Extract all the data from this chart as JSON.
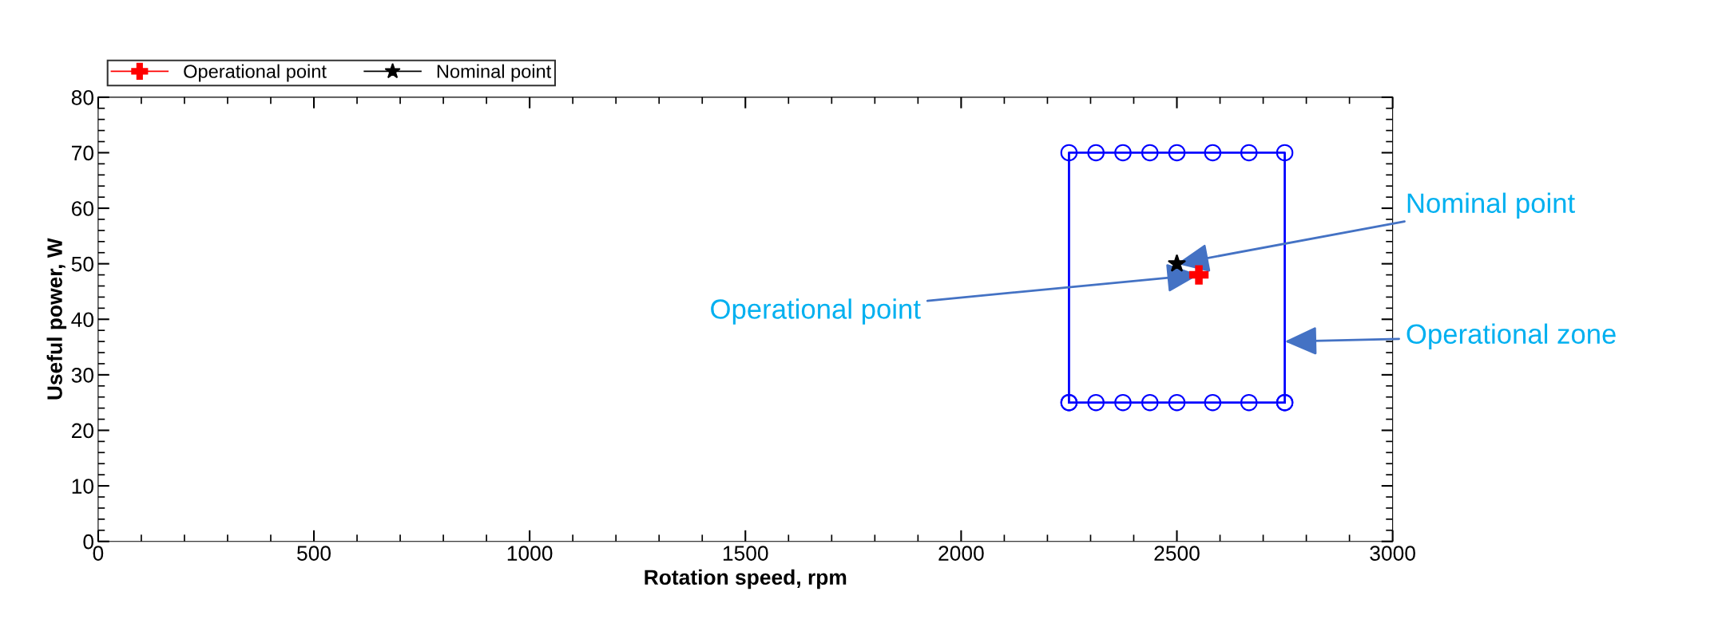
{
  "chart_data": {
    "type": "line",
    "xlabel": "Rotation speed, rpm",
    "ylabel": "Useful power, W",
    "series": [
      {
        "color": "#0000ff",
        "marker": "circle",
        "x": [
          2250,
          2250,
          2312.5,
          2375,
          2437.5,
          2500,
          2583,
          2667,
          2750,
          2750
        ],
        "values": [
          25,
          70,
          70,
          70,
          70,
          70,
          70,
          70,
          70,
          25
        ]
      },
      {
        "color": "#0000ff",
        "marker": "circle",
        "x": [
          2250,
          2312.5,
          2375,
          2437.5,
          2500,
          2583,
          2667,
          2750
        ],
        "values": [
          25,
          25,
          25,
          25,
          25,
          25,
          25,
          25
        ]
      },
      {
        "name": "Operational point",
        "color": "#ff0000",
        "marker": "cross",
        "type": "scatter",
        "x": [
          2551
        ],
        "values": [
          48
        ]
      },
      {
        "name": "Nominal point",
        "color": "#000000",
        "marker": "star",
        "type": "scatter",
        "x": [
          2500
        ],
        "values": [
          50
        ]
      }
    ],
    "annotations": [
      {
        "text": "Nominal point",
        "x": 2500,
        "y": 50
      },
      {
        "text": "Operational zone",
        "x": 2750,
        "y": 36
      },
      {
        "text": "Operational point",
        "x": 2551,
        "y": 48
      }
    ],
    "xlim": [
      0,
      3000
    ],
    "xticks": [
      0,
      500,
      1000,
      1500,
      2000,
      2500,
      3000
    ],
    "ylim": [
      0,
      80
    ],
    "yticks": [
      0,
      10,
      20,
      30,
      40,
      50,
      60,
      70,
      80
    ],
    "grid": false,
    "legend": "top left"
  }
}
